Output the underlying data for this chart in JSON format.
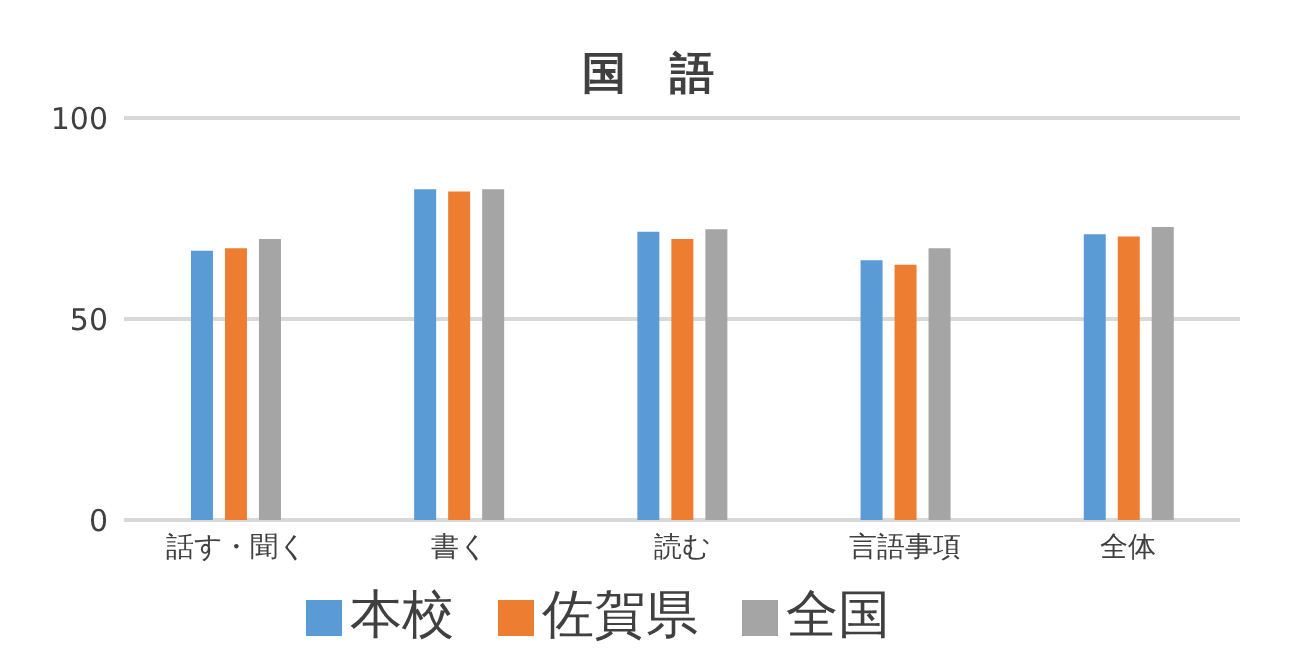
{
  "chart_data": {
    "type": "bar",
    "title": "国　語",
    "categories": [
      "話す・聞く",
      "書く",
      "読む",
      "言語事項",
      "全体"
    ],
    "series": [
      {
        "name": "本校",
        "color": "#5b9bd5",
        "values": [
          67,
          82.3,
          71.7,
          64.6,
          71.1
        ]
      },
      {
        "name": "佐賀県",
        "color": "#ed7d31",
        "values": [
          67.6,
          81.7,
          69.9,
          63.5,
          70.5
        ]
      },
      {
        "name": "全国",
        "color": "#a5a5a5",
        "values": [
          69.9,
          82.3,
          72.3,
          67.6,
          72.9
        ]
      }
    ],
    "ylim": [
      0,
      100
    ],
    "yticks": [
      0,
      50,
      100
    ],
    "grid": "y",
    "legend": "bottom"
  }
}
